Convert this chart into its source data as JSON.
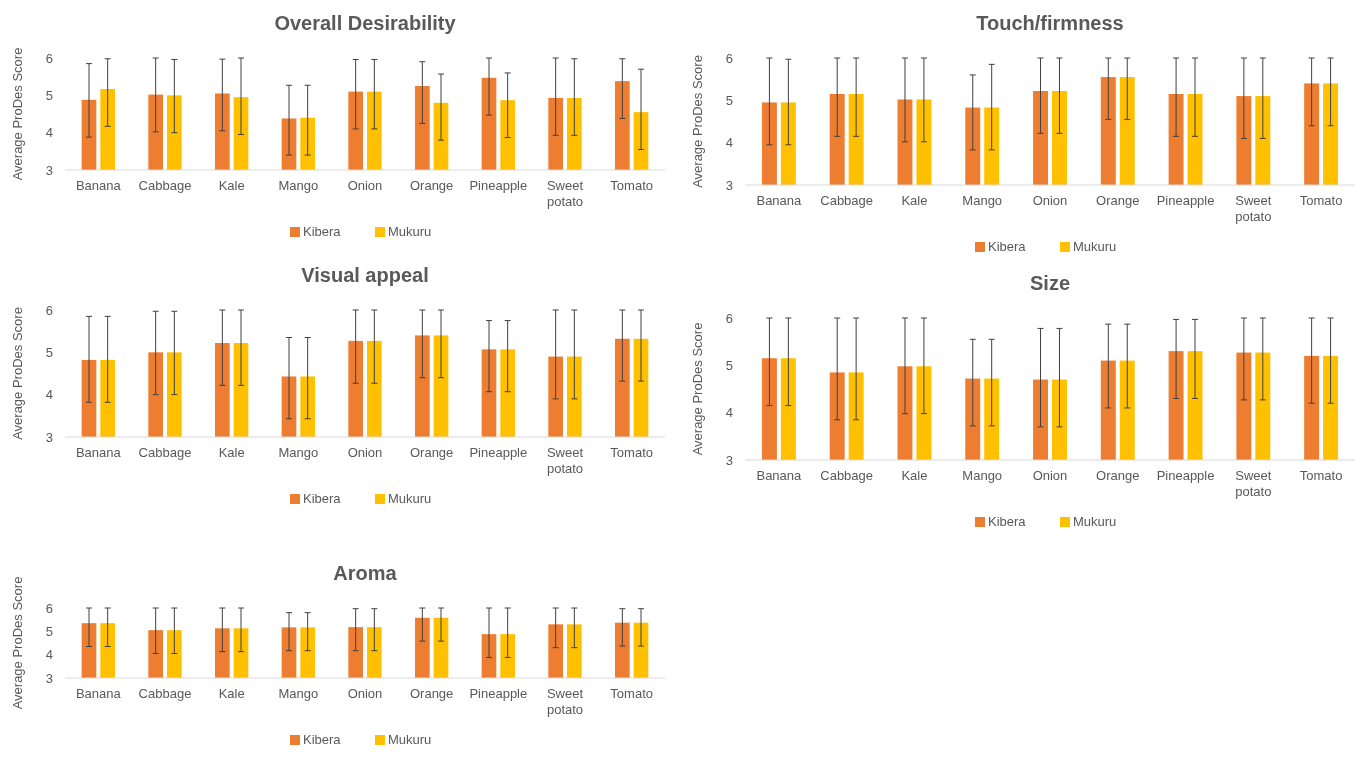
{
  "chart_data": [
    {
      "type": "bar",
      "title": "Overall Desirability",
      "ylabel": "Average ProDes Score",
      "categories": [
        "Banana",
        "Cabbage",
        "Kale",
        "Mango",
        "Onion",
        "Orange",
        "Pineapple",
        "Sweet potato",
        "Tomato"
      ],
      "ylim": [
        3,
        6
      ],
      "yticks": [
        3,
        4,
        5,
        6
      ],
      "legend": "bottom",
      "series": [
        {
          "name": "Kibera",
          "color": "#ed7d31",
          "values": [
            4.88,
            5.02,
            5.05,
            4.38,
            5.1,
            5.25,
            5.47,
            4.93,
            5.38
          ],
          "errors": [
            [
              3.88,
              5.85
            ],
            [
              4.02,
              6
            ],
            [
              4.05,
              5.97
            ],
            [
              3.4,
              5.27
            ],
            [
              4.1,
              5.96
            ],
            [
              4.25,
              5.9
            ],
            [
              4.47,
              6
            ],
            [
              3.93,
              6
            ],
            [
              4.38,
              5.98
            ]
          ]
        },
        {
          "name": "Mukuru",
          "color": "#ffc000",
          "values": [
            5.17,
            5.0,
            4.95,
            4.4,
            5.1,
            4.8,
            4.87,
            4.93,
            4.55
          ],
          "errors": [
            [
              4.17,
              5.98
            ],
            [
              4.0,
              5.96
            ],
            [
              3.95,
              6
            ],
            [
              3.4,
              5.27
            ],
            [
              4.1,
              5.96
            ],
            [
              3.8,
              5.57
            ],
            [
              3.87,
              5.6
            ],
            [
              3.93,
              5.98
            ],
            [
              3.55,
              5.7
            ]
          ]
        }
      ]
    },
    {
      "type": "bar",
      "title": "Touch/firmness",
      "ylabel": "Average ProDes Score",
      "categories": [
        "Banana",
        "Cabbage",
        "Kale",
        "Mango",
        "Onion",
        "Orange",
        "Pineapple",
        "Sweet potato",
        "Tomato"
      ],
      "ylim": [
        3,
        6
      ],
      "yticks": [
        3,
        4,
        5,
        6
      ],
      "legend": "bottom",
      "series": [
        {
          "name": "Kibera",
          "color": "#ed7d31",
          "values": [
            4.95,
            5.15,
            5.02,
            4.83,
            5.22,
            5.55,
            5.15,
            5.1,
            5.4
          ],
          "errors": [
            [
              3.95,
              6
            ],
            [
              4.15,
              6
            ],
            [
              4.02,
              6
            ],
            [
              3.83,
              5.6
            ],
            [
              4.22,
              6
            ],
            [
              4.55,
              6
            ],
            [
              4.15,
              6
            ],
            [
              4.1,
              6
            ],
            [
              4.4,
              6
            ]
          ]
        },
        {
          "name": "Mukuru",
          "color": "#ffc000",
          "values": [
            4.95,
            5.15,
            5.02,
            4.83,
            5.22,
            5.55,
            5.15,
            5.1,
            5.4
          ],
          "errors": [
            [
              3.95,
              5.97
            ],
            [
              4.15,
              6
            ],
            [
              4.02,
              6
            ],
            [
              3.83,
              5.85
            ],
            [
              4.22,
              6
            ],
            [
              4.55,
              6
            ],
            [
              4.15,
              6
            ],
            [
              4.1,
              6
            ],
            [
              4.4,
              6
            ]
          ]
        }
      ]
    },
    {
      "type": "bar",
      "title": "Visual appeal",
      "ylabel": "Average ProDes Score",
      "categories": [
        "Banana",
        "Cabbage",
        "Kale",
        "Mango",
        "Onion",
        "Orange",
        "Pineapple",
        "Sweet potato",
        "Tomato"
      ],
      "ylim": [
        3,
        6
      ],
      "yticks": [
        3,
        4,
        5,
        6
      ],
      "legend": "bottom",
      "series": [
        {
          "name": "Kibera",
          "color": "#ed7d31",
          "values": [
            4.82,
            5.0,
            5.22,
            4.43,
            5.27,
            5.4,
            5.07,
            4.9,
            5.32
          ],
          "errors": [
            [
              3.82,
              5.85
            ],
            [
              4.0,
              5.97
            ],
            [
              4.22,
              6
            ],
            [
              3.43,
              5.35
            ],
            [
              4.27,
              6
            ],
            [
              4.4,
              6
            ],
            [
              4.07,
              5.75
            ],
            [
              3.9,
              6
            ],
            [
              4.32,
              6
            ]
          ]
        },
        {
          "name": "Mukuru",
          "color": "#ffc000",
          "values": [
            4.82,
            5.0,
            5.22,
            4.43,
            5.27,
            5.4,
            5.07,
            4.9,
            5.32
          ],
          "errors": [
            [
              3.82,
              5.85
            ],
            [
              4.0,
              5.97
            ],
            [
              4.22,
              6
            ],
            [
              3.43,
              5.35
            ],
            [
              4.27,
              6
            ],
            [
              4.4,
              6
            ],
            [
              4.07,
              5.75
            ],
            [
              3.9,
              6
            ],
            [
              4.32,
              6
            ]
          ]
        }
      ]
    },
    {
      "type": "bar",
      "title": "Size",
      "ylabel": "Average ProDes Score",
      "categories": [
        "Banana",
        "Cabbage",
        "Kale",
        "Mango",
        "Onion",
        "Orange",
        "Pineapple",
        "Sweet potato",
        "Tomato"
      ],
      "ylim": [
        3,
        6
      ],
      "yticks": [
        3,
        4,
        5,
        6
      ],
      "legend": "bottom",
      "series": [
        {
          "name": "Kibera",
          "color": "#ed7d31",
          "values": [
            5.15,
            4.85,
            4.98,
            4.72,
            4.7,
            5.1,
            5.3,
            5.27,
            5.2
          ],
          "errors": [
            [
              4.15,
              6
            ],
            [
              3.85,
              6
            ],
            [
              3.98,
              6
            ],
            [
              3.72,
              5.55
            ],
            [
              3.7,
              5.78
            ],
            [
              4.1,
              5.87
            ],
            [
              4.3,
              5.97
            ],
            [
              4.27,
              6
            ],
            [
              4.2,
              6
            ]
          ]
        },
        {
          "name": "Mukuru",
          "color": "#ffc000",
          "values": [
            5.15,
            4.85,
            4.98,
            4.72,
            4.7,
            5.1,
            5.3,
            5.27,
            5.2
          ],
          "errors": [
            [
              4.15,
              6
            ],
            [
              3.85,
              6
            ],
            [
              3.98,
              6
            ],
            [
              3.72,
              5.55
            ],
            [
              3.7,
              5.78
            ],
            [
              4.1,
              5.87
            ],
            [
              4.3,
              5.97
            ],
            [
              4.27,
              6
            ],
            [
              4.2,
              6
            ]
          ]
        }
      ]
    },
    {
      "type": "bar",
      "title": "Aroma",
      "ylabel": "Average ProDes Score",
      "categories": [
        "Banana",
        "Cabbage",
        "Kale",
        "Mango",
        "Onion",
        "Orange",
        "Pineapple",
        "Sweet potato",
        "Tomato"
      ],
      "ylim": [
        3,
        6
      ],
      "yticks": [
        3,
        4,
        5,
        6
      ],
      "legend": "bottom",
      "series": [
        {
          "name": "Kibera",
          "color": "#ed7d31",
          "values": [
            5.35,
            5.05,
            5.13,
            5.17,
            5.18,
            5.58,
            4.88,
            5.3,
            5.37
          ],
          "errors": [
            [
              4.35,
              6
            ],
            [
              4.05,
              6
            ],
            [
              4.13,
              6
            ],
            [
              4.17,
              5.8
            ],
            [
              4.17,
              5.97
            ],
            [
              4.58,
              6
            ],
            [
              3.88,
              6
            ],
            [
              4.3,
              6
            ],
            [
              4.37,
              5.97
            ]
          ]
        },
        {
          "name": "Mukuru",
          "color": "#ffc000",
          "values": [
            5.35,
            5.05,
            5.13,
            5.17,
            5.18,
            5.58,
            4.88,
            5.3,
            5.37
          ],
          "errors": [
            [
              4.35,
              6
            ],
            [
              4.05,
              6
            ],
            [
              4.13,
              6
            ],
            [
              4.17,
              5.8
            ],
            [
              4.17,
              5.97
            ],
            [
              4.58,
              6
            ],
            [
              3.88,
              6
            ],
            [
              4.3,
              6
            ],
            [
              4.37,
              5.97
            ]
          ]
        }
      ]
    }
  ]
}
